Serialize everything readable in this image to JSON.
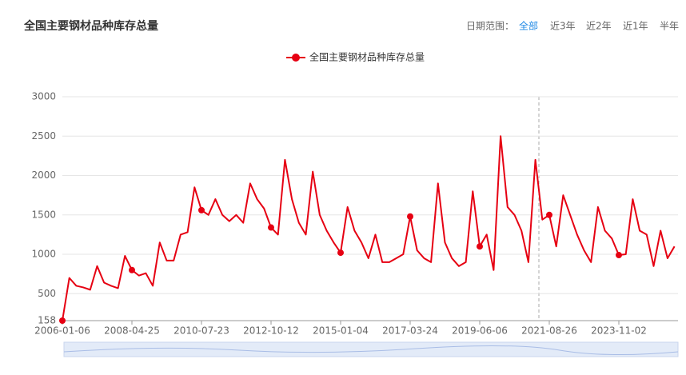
{
  "chart_data": {
    "type": "line",
    "title": "全国主要钢材品种库存总量",
    "controls": {
      "label": "日期范围：",
      "options": [
        "全部",
        "近3年",
        "近2年",
        "近1年",
        "半年"
      ]
    },
    "categories": [
      "2006-01-06",
      null,
      null,
      null,
      null,
      null,
      null,
      null,
      null,
      null,
      "2008-04-25",
      null,
      null,
      null,
      null,
      null,
      null,
      null,
      null,
      null,
      "2010-07-23",
      null,
      null,
      null,
      null,
      null,
      null,
      null,
      null,
      null,
      "2012-10-12",
      null,
      null,
      null,
      null,
      null,
      null,
      null,
      null,
      null,
      "2015-01-04",
      null,
      null,
      null,
      null,
      null,
      null,
      null,
      null,
      null,
      "2017-03-24",
      null,
      null,
      null,
      null,
      null,
      null,
      null,
      null,
      null,
      "2019-06-06",
      null,
      null,
      null,
      null,
      null,
      null,
      null,
      null,
      null,
      "2021-08-26",
      null,
      null,
      null,
      null,
      null,
      null,
      null,
      null,
      null,
      "2023-11-02",
      null,
      null,
      null,
      null,
      null,
      null,
      null,
      null
    ],
    "series": [
      {
        "name": "全国主要钢材品种库存总量",
        "color": "#e60012",
        "values": [
          158,
          700,
          600,
          580,
          550,
          850,
          640,
          600,
          570,
          980,
          800,
          730,
          760,
          600,
          1150,
          920,
          920,
          1250,
          1280,
          1850,
          1560,
          1500,
          1700,
          1500,
          1420,
          1500,
          1400,
          1900,
          1700,
          1580,
          1340,
          1250,
          2200,
          1700,
          1400,
          1250,
          2050,
          1500,
          1300,
          1150,
          1020,
          1600,
          1300,
          1150,
          950,
          1250,
          900,
          900,
          950,
          1000,
          1480,
          1050,
          950,
          900,
          1900,
          1150,
          950,
          850,
          900,
          1800,
          1100,
          1250,
          800,
          2500,
          1600,
          1500,
          1300,
          900,
          2200,
          1440,
          1500,
          1100,
          1750,
          1500,
          1250,
          1050,
          900,
          1600,
          1300,
          1200,
          990,
          1000,
          1700,
          1300,
          1250,
          850,
          1300,
          950,
          1100
        ]
      }
    ],
    "ylim": [
      158,
      3000
    ],
    "yticks": [
      158,
      500,
      1000,
      1500,
      2000,
      2500,
      3000
    ],
    "grid": true
  }
}
